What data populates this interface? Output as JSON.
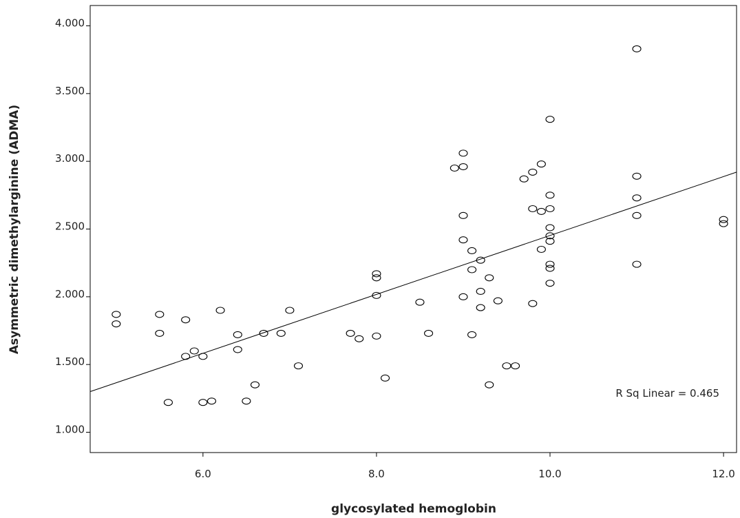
{
  "chart_data": {
    "type": "scatter",
    "xlabel": "glycosylated hemoglobin",
    "ylabel": "Asymmetric dimethylarginine (ADMA)",
    "xlim": [
      4.7,
      12.15
    ],
    "ylim": [
      0.85,
      4.15
    ],
    "x_ticks": [
      6.0,
      8.0,
      10.0,
      12.0
    ],
    "x_tick_labels": [
      "6.0",
      "8.0",
      "10.0",
      "12.0"
    ],
    "y_ticks": [
      1.0,
      1.5,
      2.0,
      2.5,
      3.0,
      3.5,
      4.0
    ],
    "y_tick_labels": [
      "1.000",
      "1.500",
      "2.000",
      "2.500",
      "3.000",
      "3.500",
      "4.000"
    ],
    "grid": false,
    "marker": "open-circle",
    "points": [
      {
        "x": 5.0,
        "y": 1.87
      },
      {
        "x": 5.0,
        "y": 1.8
      },
      {
        "x": 5.5,
        "y": 1.87
      },
      {
        "x": 5.5,
        "y": 1.73
      },
      {
        "x": 5.6,
        "y": 1.22
      },
      {
        "x": 5.8,
        "y": 1.83
      },
      {
        "x": 5.8,
        "y": 1.56
      },
      {
        "x": 5.9,
        "y": 1.6
      },
      {
        "x": 6.0,
        "y": 1.56
      },
      {
        "x": 6.0,
        "y": 1.22
      },
      {
        "x": 6.1,
        "y": 1.23
      },
      {
        "x": 6.2,
        "y": 1.9
      },
      {
        "x": 6.4,
        "y": 1.72
      },
      {
        "x": 6.4,
        "y": 1.61
      },
      {
        "x": 6.5,
        "y": 1.23
      },
      {
        "x": 6.6,
        "y": 1.35
      },
      {
        "x": 6.7,
        "y": 1.73
      },
      {
        "x": 6.9,
        "y": 1.73
      },
      {
        "x": 7.0,
        "y": 1.9
      },
      {
        "x": 7.1,
        "y": 1.49
      },
      {
        "x": 7.7,
        "y": 1.73
      },
      {
        "x": 7.8,
        "y": 1.69
      },
      {
        "x": 8.0,
        "y": 2.17
      },
      {
        "x": 8.0,
        "y": 2.14
      },
      {
        "x": 8.0,
        "y": 2.01
      },
      {
        "x": 8.0,
        "y": 1.71
      },
      {
        "x": 8.1,
        "y": 1.4
      },
      {
        "x": 8.5,
        "y": 1.96
      },
      {
        "x": 8.6,
        "y": 1.73
      },
      {
        "x": 8.9,
        "y": 2.95
      },
      {
        "x": 9.0,
        "y": 3.06
      },
      {
        "x": 9.0,
        "y": 2.96
      },
      {
        "x": 9.0,
        "y": 2.6
      },
      {
        "x": 9.0,
        "y": 2.42
      },
      {
        "x": 9.0,
        "y": 2.0
      },
      {
        "x": 9.1,
        "y": 2.34
      },
      {
        "x": 9.1,
        "y": 2.2
      },
      {
        "x": 9.1,
        "y": 1.72
      },
      {
        "x": 9.2,
        "y": 2.27
      },
      {
        "x": 9.2,
        "y": 2.04
      },
      {
        "x": 9.2,
        "y": 1.92
      },
      {
        "x": 9.3,
        "y": 2.14
      },
      {
        "x": 9.3,
        "y": 1.35
      },
      {
        "x": 9.4,
        "y": 1.97
      },
      {
        "x": 9.5,
        "y": 1.49
      },
      {
        "x": 9.6,
        "y": 1.49
      },
      {
        "x": 9.7,
        "y": 2.87
      },
      {
        "x": 9.8,
        "y": 2.92
      },
      {
        "x": 9.8,
        "y": 2.65
      },
      {
        "x": 9.8,
        "y": 1.95
      },
      {
        "x": 9.9,
        "y": 2.98
      },
      {
        "x": 9.9,
        "y": 2.63
      },
      {
        "x": 9.9,
        "y": 2.35
      },
      {
        "x": 10.0,
        "y": 3.31
      },
      {
        "x": 10.0,
        "y": 2.75
      },
      {
        "x": 10.0,
        "y": 2.65
      },
      {
        "x": 10.0,
        "y": 2.51
      },
      {
        "x": 10.0,
        "y": 2.45
      },
      {
        "x": 10.0,
        "y": 2.41
      },
      {
        "x": 10.0,
        "y": 2.24
      },
      {
        "x": 10.0,
        "y": 2.21
      },
      {
        "x": 10.0,
        "y": 2.1
      },
      {
        "x": 11.0,
        "y": 3.83
      },
      {
        "x": 11.0,
        "y": 2.89
      },
      {
        "x": 11.0,
        "y": 2.73
      },
      {
        "x": 11.0,
        "y": 2.6
      },
      {
        "x": 11.0,
        "y": 2.24
      },
      {
        "x": 12.0,
        "y": 2.57
      },
      {
        "x": 12.0,
        "y": 2.54
      }
    ],
    "fit_line": {
      "x": [
        4.7,
        12.15
      ],
      "y": [
        1.3,
        2.92
      ]
    },
    "annotation": "R Sq Linear = 0.465",
    "colors": {
      "marker_stroke": "#000000",
      "line": "#000000",
      "background": "#ffffff"
    }
  }
}
